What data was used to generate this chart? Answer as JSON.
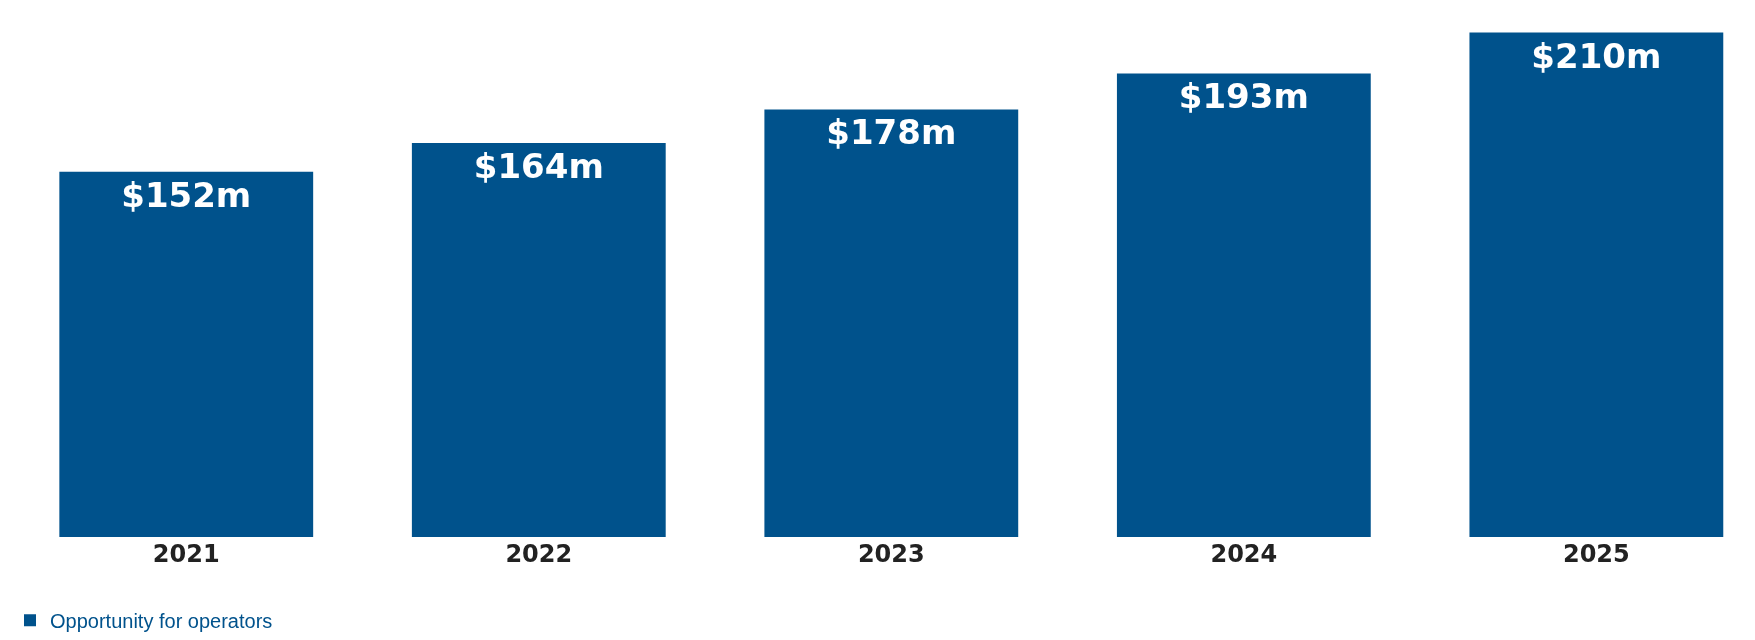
{
  "chart_data": {
    "type": "bar",
    "categories": [
      "2021",
      "2022",
      "2023",
      "2024",
      "2025"
    ],
    "series": [
      {
        "name": "Opportunity for operators",
        "color": "#00528c",
        "values": [
          152,
          164,
          178,
          193,
          210
        ],
        "value_labels": [
          "$152m",
          "$164m",
          "$178m",
          "$193m",
          "$210m"
        ]
      }
    ],
    "legend": "bottom left",
    "grid": false
  }
}
